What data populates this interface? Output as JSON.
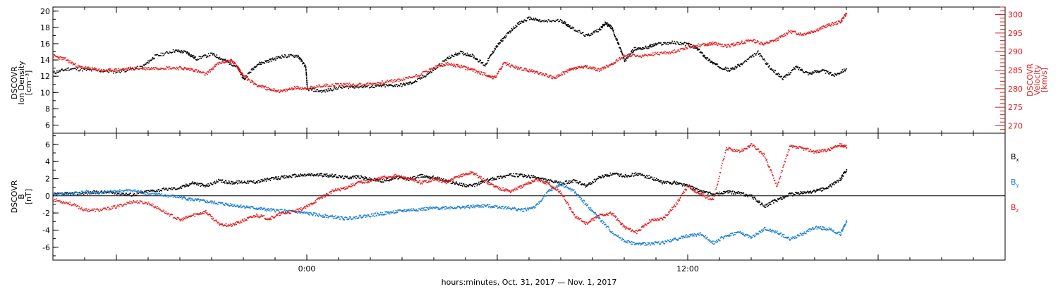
{
  "colors": {
    "axis": "#000000",
    "density": "#000000",
    "velocity": "#e41a1c",
    "bx": "#000000",
    "by": "#1a7fd4",
    "bz": "#e41a1c"
  },
  "x_axis": {
    "xlabel": "hours:minutes, Oct. 31, 2017 — Nov.  1, 2017",
    "range_hours": [
      -8,
      22
    ],
    "tick_labels": [
      {
        "hour": 0,
        "label": "0:00"
      },
      {
        "hour": 12,
        "label": "12:00"
      }
    ]
  },
  "chart_data": [
    {
      "type": "scatter",
      "panel": "top",
      "left_axis": {
        "label_lines": [
          "DSCOVR",
          "Ion Density",
          "[cm⁻³]"
        ],
        "ylim": [
          5,
          20.5
        ],
        "ticks": [
          6,
          8,
          10,
          12,
          14,
          16,
          18,
          20
        ]
      },
      "right_axis": {
        "label_lines": [
          "DSCOVR",
          "Velocity",
          "[km/s]"
        ],
        "ylim": [
          268,
          302
        ],
        "ticks": [
          270,
          275,
          280,
          285,
          290,
          295,
          300
        ]
      },
      "series": [
        {
          "name": "Ion Density",
          "axis": "left",
          "color": "#000000",
          "x": [
            -8,
            -7.5,
            -6.8,
            -6,
            -5.2,
            -4.8,
            -4.2,
            -3.8,
            -3.5,
            -3,
            -2.6,
            -2.2,
            -2,
            -1.6,
            -1.2,
            -0.8,
            -0.3,
            -0.05,
            0,
            0.5,
            1,
            1.5,
            2,
            2.5,
            3,
            3.4,
            3.9,
            4.4,
            4.8,
            5.2,
            5.6,
            5.9,
            6.2,
            6.6,
            7,
            7.4,
            8,
            8.3,
            8.8,
            9.2,
            9.4,
            9.6,
            9.8,
            10,
            10.3,
            10.7,
            11,
            11.5,
            12,
            12.3,
            12.6,
            12.9,
            13.3,
            13.7,
            14.2,
            14.6,
            15,
            15.4,
            15.8,
            16.2,
            16.6,
            17
          ],
          "y": [
            12.5,
            13,
            12.8,
            12.6,
            13.2,
            14.5,
            15.2,
            15,
            14.2,
            14.8,
            14,
            13.2,
            11.7,
            13.5,
            14,
            14.5,
            14.6,
            13.2,
            10.5,
            10.2,
            10.7,
            10.8,
            10.8,
            10.9,
            11,
            11.4,
            12.6,
            14.2,
            15,
            14.6,
            13.4,
            15.4,
            16.8,
            18.4,
            19.2,
            18.8,
            18.9,
            18.1,
            17,
            17.8,
            18.6,
            18,
            16,
            14,
            15.4,
            15.6,
            16,
            16.2,
            16,
            15.4,
            14.2,
            13.4,
            12.8,
            13.6,
            15,
            13,
            11.8,
            13.2,
            12.4,
            12.8,
            12.2,
            13
          ]
        },
        {
          "name": "Velocity",
          "axis": "right",
          "color": "#e41a1c",
          "x": [
            -8,
            -7.6,
            -7.2,
            -6.8,
            -6.4,
            -6,
            -5.5,
            -5,
            -4.5,
            -4,
            -3.6,
            -3.2,
            -2.8,
            -2.4,
            -2.2,
            -2,
            -1.6,
            -1.2,
            -0.8,
            -0.4,
            0,
            0.5,
            1,
            1.5,
            2,
            2.5,
            3,
            3.5,
            4,
            4.4,
            4.8,
            5.2,
            5.6,
            5.9,
            6.2,
            6.6,
            7,
            7.4,
            7.8,
            8.2,
            8.5,
            8.8,
            9.2,
            9.6,
            10,
            10.5,
            11,
            11.5,
            12,
            12.5,
            12.8,
            13.2,
            13.6,
            14,
            14.4,
            14.8,
            15.2,
            15.6,
            16,
            16.4,
            16.8,
            17
          ],
          "y": [
            289,
            288,
            286,
            285.5,
            285,
            285.2,
            285.6,
            285.6,
            285.8,
            285.7,
            285.3,
            284,
            287,
            287.8,
            286,
            283.4,
            281.2,
            280,
            279.4,
            280.4,
            280.2,
            281,
            281.3,
            281.2,
            281.4,
            282,
            282.6,
            283.8,
            285.8,
            286.8,
            286.2,
            285.2,
            284,
            283,
            287,
            285.8,
            285,
            284.2,
            283,
            285,
            285.8,
            286,
            285.2,
            286.8,
            289.2,
            288.9,
            289.6,
            290,
            291.4,
            292,
            292.4,
            291.6,
            292.4,
            293.2,
            292.2,
            293.4,
            295.6,
            294.8,
            295.8,
            297.2,
            298.2,
            300.5
          ]
        }
      ]
    },
    {
      "type": "scatter",
      "panel": "bottom",
      "left_axis": {
        "label_lines": [
          "DSCOVR",
          "B",
          "[nT]"
        ],
        "ylim": [
          -7.5,
          7.3
        ],
        "ticks": [
          -6,
          -4,
          -2,
          0,
          2,
          4,
          6
        ]
      },
      "zero_line": true,
      "series": [
        {
          "name": "B",
          "name_subscript": "x",
          "color": "#000000",
          "x": [
            -8,
            -7.5,
            -7,
            -6.5,
            -6,
            -5.5,
            -5,
            -4.5,
            -4,
            -3.6,
            -3.2,
            -2.8,
            -2.4,
            -2,
            -1.6,
            -1.2,
            -0.8,
            -0.4,
            0,
            0.4,
            0.8,
            1.2,
            1.6,
            2,
            2.4,
            2.8,
            3.2,
            3.6,
            4,
            4.4,
            4.8,
            5.2,
            5.6,
            6,
            6.4,
            6.8,
            7.2,
            7.6,
            8,
            8.4,
            8.8,
            9.2,
            9.6,
            10,
            10.4,
            10.8,
            11.2,
            11.6,
            12,
            12.4,
            12.8,
            13.2,
            13.6,
            14,
            14.4,
            14.8,
            15.2,
            15.6,
            16,
            16.4,
            16.8,
            17
          ],
          "y": [
            0.2,
            0.3,
            0.4,
            0.5,
            0.4,
            0.2,
            0.6,
            0.8,
            1,
            1.6,
            1.2,
            1.8,
            1.6,
            1.7,
            1.7,
            2,
            2.2,
            2.4,
            2.5,
            2.5,
            2.4,
            2.2,
            2.3,
            2,
            1.8,
            2.2,
            2,
            2.4,
            2.2,
            1.8,
            1.4,
            1.2,
            1.8,
            2.2,
            2.5,
            2.4,
            2.2,
            1.8,
            1.5,
            1.8,
            1.2,
            2.2,
            2.6,
            2.4,
            2.6,
            2.2,
            1.6,
            1.6,
            1.2,
            0.6,
            0.2,
            0.5,
            0.4,
            0,
            -1.2,
            -0.4,
            0.2,
            0.4,
            0.6,
            1,
            2,
            3.2
          ]
        },
        {
          "name": "B",
          "name_subscript": "y",
          "color": "#1a7fd4",
          "x": [
            -8,
            -7.5,
            -7,
            -6.5,
            -6,
            -5.5,
            -5,
            -4.5,
            -4,
            -3.6,
            -3.2,
            -2.8,
            -2.4,
            -2,
            -1.6,
            -1.2,
            -0.8,
            -0.4,
            0,
            0.4,
            0.8,
            1.2,
            1.6,
            2,
            2.4,
            2.8,
            3.2,
            3.6,
            4,
            4.4,
            4.8,
            5.2,
            5.6,
            6,
            6.4,
            6.8,
            7.2,
            7.6,
            8,
            8.4,
            8.8,
            9.2,
            9.6,
            10,
            10.4,
            10.8,
            11.2,
            11.6,
            12,
            12.4,
            12.8,
            13.2,
            13.6,
            14,
            14.4,
            14.8,
            15.2,
            15.6,
            16,
            16.4,
            16.8,
            17
          ],
          "y": [
            0.2,
            0.3,
            0.5,
            0.4,
            0.6,
            0.7,
            0.3,
            0.1,
            -0.1,
            -0.4,
            -0.6,
            -0.8,
            -1,
            -1.2,
            -1.4,
            -1.6,
            -1.7,
            -1.8,
            -2,
            -2.2,
            -2.4,
            -2.6,
            -2.4,
            -2.2,
            -2,
            -1.8,
            -1.6,
            -1.5,
            -1.4,
            -1.3,
            -1.3,
            -1.2,
            -1.1,
            -1.2,
            -1.4,
            -1.6,
            -1.2,
            0.6,
            1.4,
            0.6,
            -1,
            -2.6,
            -4.2,
            -5.2,
            -5.6,
            -5.5,
            -5.4,
            -5,
            -4.6,
            -4.4,
            -5.4,
            -4.6,
            -4.2,
            -4.8,
            -3.8,
            -4.2,
            -5,
            -4.4,
            -3.6,
            -3.8,
            -4.4,
            -2.8
          ]
        },
        {
          "name": "B",
          "name_subscript": "z",
          "color": "#e41a1c",
          "x": [
            -8,
            -7.5,
            -7,
            -6.5,
            -6,
            -5.5,
            -5,
            -4.5,
            -4,
            -3.6,
            -3.2,
            -2.8,
            -2.4,
            -2,
            -1.6,
            -1.2,
            -0.8,
            -0.4,
            0,
            0.4,
            0.8,
            1.2,
            1.6,
            2,
            2.4,
            2.8,
            3.2,
            3.6,
            4,
            4.4,
            4.8,
            5.2,
            5.6,
            6,
            6.4,
            6.8,
            7.2,
            7.6,
            8,
            8.4,
            8.8,
            9.2,
            9.6,
            10,
            10.4,
            10.8,
            11.2,
            11.6,
            12,
            12.4,
            12.8,
            13.2,
            13.6,
            14,
            14.4,
            14.8,
            15.2,
            15.6,
            16,
            16.4,
            16.8,
            17
          ],
          "y": [
            -0.4,
            -0.8,
            -1.6,
            -1.6,
            -1.2,
            -0.6,
            -0.8,
            -1.8,
            -2.8,
            -2.2,
            -1.8,
            -3.2,
            -3.4,
            -2.8,
            -2.2,
            -2.6,
            -2,
            -1.8,
            -1.2,
            -0.2,
            0.6,
            1,
            1.6,
            1.8,
            2.2,
            2.4,
            2,
            1.6,
            2,
            1.6,
            2.4,
            2.8,
            1.8,
            1,
            0.6,
            1.2,
            2,
            1.4,
            0.4,
            -2.2,
            -3.2,
            -2.2,
            -2,
            -3.6,
            -4.2,
            -2.8,
            -2.6,
            -1,
            1.2,
            0.2,
            -0.4,
            5.6,
            5.2,
            6,
            4.8,
            1.2,
            5.8,
            5.6,
            5.2,
            5.4,
            6,
            5.8
          ]
        }
      ]
    }
  ]
}
